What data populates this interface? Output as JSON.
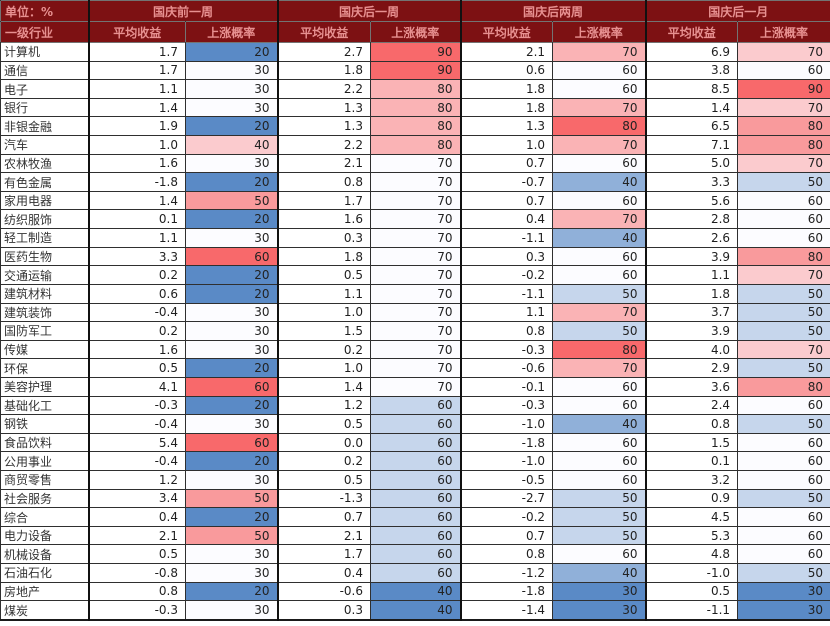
{
  "colors": {
    "header_bg": "#7D1113",
    "header_text": "#E79090",
    "scale_min_blue": "#5A8AC6",
    "scale_mid_white": "#FCFCFF",
    "scale_max_red": "#F8696B",
    "grid_line": "#2f2f2f",
    "body_text": "#1f1f1f"
  },
  "chart_data": {
    "type": "heatmap-table",
    "unit": "单位：%",
    "row_header": "一级行业",
    "periods": [
      "国庆前一周",
      "国庆后一周",
      "国庆后两周",
      "国庆后一月"
    ],
    "metrics": [
      "平均收益",
      "上涨概率"
    ],
    "legend_note": "上涨概率列按列内最小值-中位数-最大值做蓝-白-红三色色阶",
    "rows": [
      {
        "name": "计算机",
        "values": [
          1.7,
          20,
          2.7,
          90,
          2.1,
          70,
          6.9,
          70
        ]
      },
      {
        "name": "通信",
        "values": [
          1.7,
          30,
          1.8,
          90,
          0.6,
          60,
          3.8,
          60
        ]
      },
      {
        "name": "电子",
        "values": [
          1.1,
          30,
          2.2,
          80,
          1.8,
          60,
          8.5,
          90
        ]
      },
      {
        "name": "银行",
        "values": [
          1.4,
          30,
          1.3,
          80,
          1.8,
          70,
          1.4,
          70
        ]
      },
      {
        "name": "非银金融",
        "values": [
          1.9,
          20,
          1.3,
          80,
          1.3,
          80,
          6.5,
          80
        ]
      },
      {
        "name": "汽车",
        "values": [
          1.0,
          40,
          2.2,
          80,
          1.0,
          70,
          7.1,
          80
        ]
      },
      {
        "name": "农林牧渔",
        "values": [
          1.6,
          30,
          2.1,
          70,
          0.7,
          60,
          5.0,
          70
        ]
      },
      {
        "name": "有色金属",
        "values": [
          -1.8,
          20,
          0.8,
          70,
          -0.7,
          40,
          3.3,
          50
        ]
      },
      {
        "name": "家用电器",
        "values": [
          1.4,
          50,
          1.7,
          70,
          0.7,
          60,
          5.6,
          60
        ]
      },
      {
        "name": "纺织服饰",
        "values": [
          0.1,
          20,
          1.6,
          70,
          0.4,
          70,
          2.8,
          60
        ]
      },
      {
        "name": "轻工制造",
        "values": [
          1.1,
          30,
          0.3,
          70,
          -1.1,
          40,
          2.6,
          60
        ]
      },
      {
        "name": "医药生物",
        "values": [
          3.3,
          60,
          1.8,
          70,
          0.3,
          60,
          3.9,
          80
        ]
      },
      {
        "name": "交通运输",
        "values": [
          0.2,
          20,
          0.5,
          70,
          -0.2,
          60,
          1.1,
          70
        ]
      },
      {
        "name": "建筑材料",
        "values": [
          0.6,
          20,
          1.1,
          70,
          -1.1,
          50,
          1.8,
          50
        ]
      },
      {
        "name": "建筑装饰",
        "values": [
          -0.4,
          30,
          1.0,
          70,
          1.1,
          70,
          3.7,
          50
        ]
      },
      {
        "name": "国防军工",
        "values": [
          0.2,
          30,
          1.5,
          70,
          0.8,
          50,
          3.9,
          50
        ]
      },
      {
        "name": "传媒",
        "values": [
          1.6,
          30,
          0.2,
          70,
          -0.3,
          80,
          4.0,
          70
        ]
      },
      {
        "name": "环保",
        "values": [
          0.5,
          20,
          1.0,
          70,
          -0.6,
          70,
          2.9,
          50
        ]
      },
      {
        "name": "美容护理",
        "values": [
          4.1,
          60,
          1.4,
          70,
          -0.1,
          60,
          3.6,
          80
        ]
      },
      {
        "name": "基础化工",
        "values": [
          -0.3,
          20,
          1.2,
          60,
          -0.3,
          60,
          2.4,
          60
        ]
      },
      {
        "name": "钢铁",
        "values": [
          -0.4,
          30,
          0.5,
          60,
          -1.0,
          40,
          0.8,
          50
        ]
      },
      {
        "name": "食品饮料",
        "values": [
          5.4,
          60,
          0.0,
          60,
          -1.8,
          60,
          1.5,
          60
        ]
      },
      {
        "name": "公用事业",
        "values": [
          -0.4,
          20,
          0.2,
          60,
          -1.0,
          60,
          0.1,
          60
        ]
      },
      {
        "name": "商贸零售",
        "values": [
          1.2,
          30,
          0.5,
          60,
          -0.5,
          60,
          3.2,
          60
        ]
      },
      {
        "name": "社会服务",
        "values": [
          3.4,
          50,
          -1.3,
          60,
          -2.7,
          50,
          0.9,
          50
        ]
      },
      {
        "name": "综合",
        "values": [
          0.4,
          20,
          0.7,
          60,
          -0.2,
          50,
          4.5,
          60
        ]
      },
      {
        "name": "电力设备",
        "values": [
          2.1,
          50,
          2.1,
          60,
          0.7,
          50,
          5.3,
          60
        ]
      },
      {
        "name": "机械设备",
        "values": [
          0.5,
          30,
          1.7,
          60,
          0.8,
          60,
          4.8,
          60
        ]
      },
      {
        "name": "石油石化",
        "values": [
          -0.8,
          30,
          0.4,
          60,
          -1.2,
          40,
          -1.0,
          50
        ]
      },
      {
        "name": "房地产",
        "values": [
          0.8,
          20,
          -0.6,
          40,
          -1.8,
          30,
          0.5,
          30
        ]
      },
      {
        "name": "煤炭",
        "values": [
          -0.3,
          30,
          0.3,
          40,
          -1.4,
          30,
          -1.1,
          30
        ]
      }
    ]
  }
}
